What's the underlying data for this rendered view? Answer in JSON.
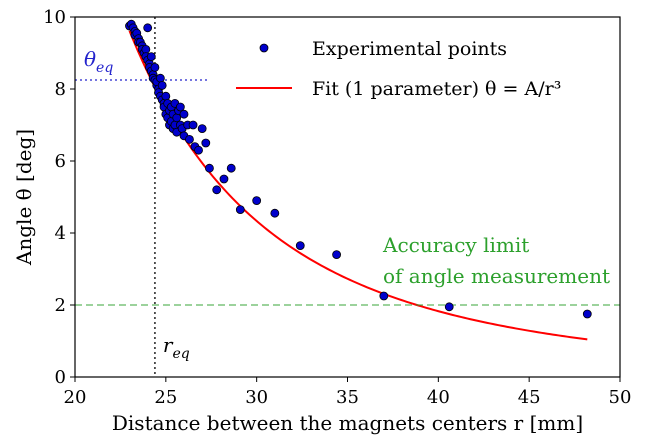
{
  "chart_data": {
    "type": "scatter",
    "xlabel": "Distance between the magnets centers r [mm]",
    "ylabel": "Angle θ [deg]",
    "xlim": [
      20,
      50
    ],
    "ylim": [
      0,
      10
    ],
    "x_ticks": [
      20,
      25,
      30,
      35,
      40,
      45,
      50
    ],
    "y_ticks": [
      0,
      2,
      4,
      6,
      8,
      10
    ],
    "grid": false,
    "legend_position": "top-right",
    "series": [
      {
        "name": "Experimental points",
        "kind": "scatter",
        "color": "#0000cc",
        "points": [
          [
            23.0,
            9.75
          ],
          [
            23.1,
            9.8
          ],
          [
            23.2,
            9.7
          ],
          [
            23.3,
            9.6
          ],
          [
            23.3,
            9.5
          ],
          [
            23.4,
            9.55
          ],
          [
            23.5,
            9.4
          ],
          [
            23.5,
            9.3
          ],
          [
            23.6,
            9.3
          ],
          [
            23.7,
            9.2
          ],
          [
            23.7,
            9.1
          ],
          [
            23.8,
            9.0
          ],
          [
            23.9,
            9.1
          ],
          [
            24.0,
            9.7
          ],
          [
            23.9,
            8.9
          ],
          [
            24.0,
            8.8
          ],
          [
            24.1,
            8.7
          ],
          [
            24.1,
            8.6
          ],
          [
            24.2,
            8.5
          ],
          [
            24.2,
            8.9
          ],
          [
            24.3,
            8.4
          ],
          [
            24.3,
            8.3
          ],
          [
            24.4,
            8.25
          ],
          [
            24.4,
            8.6
          ],
          [
            24.5,
            8.1
          ],
          [
            24.5,
            8.2
          ],
          [
            24.6,
            8.0
          ],
          [
            24.6,
            7.9
          ],
          [
            24.7,
            8.3
          ],
          [
            24.7,
            7.8
          ],
          [
            24.8,
            7.7
          ],
          [
            24.8,
            8.1
          ],
          [
            24.9,
            7.6
          ],
          [
            24.9,
            7.5
          ],
          [
            25.0,
            7.8
          ],
          [
            25.0,
            7.3
          ],
          [
            25.1,
            7.2
          ],
          [
            25.1,
            7.6
          ],
          [
            25.2,
            7.4
          ],
          [
            25.2,
            7.0
          ],
          [
            25.3,
            7.5
          ],
          [
            25.3,
            7.1
          ],
          [
            25.4,
            7.3
          ],
          [
            25.4,
            6.9
          ],
          [
            25.5,
            7.6
          ],
          [
            25.5,
            7.0
          ],
          [
            25.6,
            7.2
          ],
          [
            25.6,
            6.8
          ],
          [
            25.7,
            7.4
          ],
          [
            25.8,
            7.5
          ],
          [
            25.8,
            7.0
          ],
          [
            25.9,
            6.9
          ],
          [
            26.0,
            7.3
          ],
          [
            26.0,
            6.7
          ],
          [
            26.2,
            7.0
          ],
          [
            26.3,
            6.6
          ],
          [
            26.5,
            7.0
          ],
          [
            26.6,
            6.4
          ],
          [
            26.8,
            6.3
          ],
          [
            27.0,
            6.9
          ],
          [
            27.2,
            6.5
          ],
          [
            27.4,
            5.8
          ],
          [
            27.8,
            5.2
          ],
          [
            28.2,
            5.5
          ],
          [
            28.6,
            5.8
          ],
          [
            29.1,
            4.65
          ],
          [
            30.0,
            4.9
          ],
          [
            31.0,
            4.55
          ],
          [
            32.4,
            3.65
          ],
          [
            34.4,
            3.4
          ],
          [
            37.0,
            2.25
          ],
          [
            40.6,
            1.95
          ],
          [
            48.2,
            1.75
          ]
        ]
      },
      {
        "name": "Fit (1 parameter) θ = A/r³",
        "kind": "line",
        "color": "#ff0000",
        "model": "A/r^3",
        "x_range": [
          23.0,
          48.2
        ],
        "fit_params": {
          "A": 117000
        }
      }
    ],
    "annotations": {
      "theta_eq": {
        "label": "θeq",
        "y": 8.25,
        "color": "#2222cc"
      },
      "r_eq": {
        "label": "req",
        "x": 24.4,
        "color": "#000000"
      },
      "accuracy_limit": {
        "label_line1": "Accuracy limit",
        "label_line2": "of angle measurement",
        "y": 2.0,
        "color": "#2ca02c"
      }
    }
  }
}
